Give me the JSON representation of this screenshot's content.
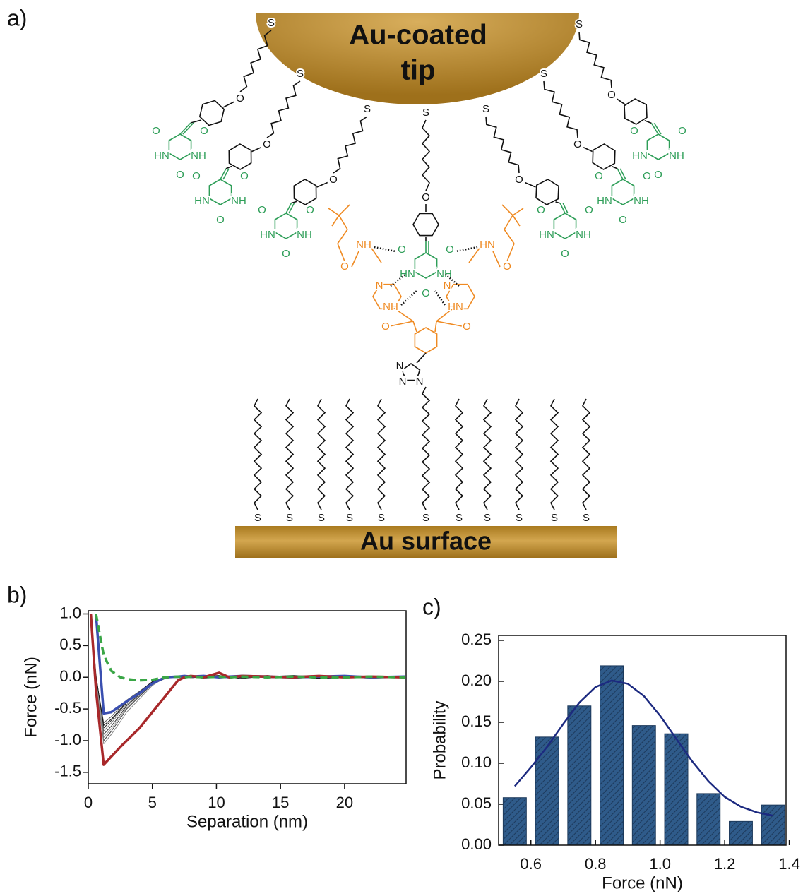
{
  "panel_labels": [
    "a)",
    "b)",
    "c)"
  ],
  "diagram": {
    "tip_label": [
      "Au-coated",
      "tip"
    ],
    "surface_label": "Au surface",
    "tip_chains": [
      {
        "s": "S",
        "o": "O",
        "barbiturate": [
          "O",
          "O",
          "HN",
          "NH",
          "O"
        ]
      },
      {
        "s": "S",
        "o": "O",
        "barbiturate": [
          "O",
          "O",
          "HN",
          "NH",
          "O"
        ]
      },
      {
        "s": "S",
        "o": "O",
        "barbiturate": [
          "O",
          "O",
          "HN",
          "NH",
          "O"
        ]
      },
      {
        "s": "S",
        "o": "O",
        "barbiturate": [
          "O",
          "O",
          "HN",
          "NH",
          "O"
        ]
      },
      {
        "s": "S",
        "o": "O",
        "barbiturate": [
          "O",
          "O",
          "HN",
          "NH",
          "O"
        ]
      },
      {
        "s": "S",
        "o": "O",
        "barbiturate": [
          "O",
          "O",
          "HN",
          "NH",
          "O"
        ]
      }
    ],
    "central_chain": {
      "s": "S",
      "o": "O",
      "barbiturate": [
        "O",
        "O",
        "HN",
        "NH",
        "O"
      ]
    },
    "receptor_labels": [
      "O",
      "NH",
      "N",
      "NH",
      "O",
      "HN",
      "O",
      "N",
      "HN",
      "O",
      "N",
      "N",
      "N"
    ],
    "surface_chains": [
      "S",
      "S",
      "S",
      "S",
      "S",
      "S",
      "S",
      "S",
      "S",
      "S",
      "S"
    ]
  },
  "chart_data": [
    {
      "type": "line",
      "xlabel": "Separation (nm)",
      "ylabel": "Force (nN)",
      "xlim": [
        0,
        24.8
      ],
      "ylim": [
        -1.68,
        1.05
      ],
      "xticks": [
        0,
        5,
        10,
        15,
        20
      ],
      "yticks": [
        {
          "value": 1,
          "label": "1.0"
        },
        0.5,
        {
          "value": 0,
          "label": "0.0"
        },
        -0.5,
        {
          "value": -1,
          "label": "-1.0"
        },
        -1.5
      ],
      "x": [
        0.2,
        0.6,
        1.2,
        1.8,
        2.5,
        3,
        4,
        5,
        6,
        7,
        7.5,
        8,
        9,
        10.2,
        11,
        12,
        14,
        16,
        18,
        20,
        22,
        24.7
      ],
      "series": [
        {
          "color": "#555555",
          "values": [
            1.0,
            0.0,
            -0.72,
            -0.62,
            -0.47,
            -0.36,
            -0.22,
            -0.07,
            0.0,
            0.02,
            -0.02,
            0.01,
            0.03,
            -0.01,
            0.02,
            0.0,
            0.03,
            -0.02,
            0.01,
            0.02,
            -0.01,
            0.0
          ]
        },
        {
          "color": "#222222",
          "values": [
            1.0,
            -0.05,
            -0.8,
            -0.68,
            -0.52,
            -0.4,
            -0.24,
            -0.08,
            0.01,
            0.0,
            0.02,
            -0.01,
            0.01,
            0.03,
            0.0,
            -0.02,
            0.02,
            0.01,
            -0.01,
            0.02,
            0.01,
            0.02
          ]
        },
        {
          "color": "#777777",
          "values": [
            1.0,
            0.05,
            -0.85,
            -0.72,
            -0.55,
            -0.43,
            -0.26,
            -0.09,
            -0.01,
            0.02,
            0.0,
            0.02,
            -0.02,
            0.01,
            0.02,
            0.01,
            0.0,
            0.02,
            0.03,
            -0.01,
            0.0,
            0.01
          ]
        },
        {
          "color": "#333333",
          "values": [
            1.0,
            -0.1,
            -0.9,
            -0.77,
            -0.59,
            -0.45,
            -0.27,
            -0.1,
            0.0,
            0.01,
            0.01,
            0.0,
            0.02,
            -0.01,
            0.01,
            0.03,
            -0.01,
            0.0,
            0.01,
            0.0,
            0.02,
            -0.01
          ]
        },
        {
          "color": "#999999",
          "values": [
            1.0,
            0.0,
            -0.95,
            -0.81,
            -0.62,
            -0.48,
            -0.29,
            -0.1,
            0.01,
            -0.01,
            0.02,
            0.01,
            0.0,
            0.02,
            -0.02,
            0.01,
            0.02,
            0.01,
            0.0,
            0.02,
            -0.02,
            0.01
          ]
        },
        {
          "color": "#444444",
          "values": [
            1.0,
            -0.15,
            -1.0,
            -0.85,
            -0.65,
            -0.5,
            -0.3,
            -0.11,
            -0.02,
            0.01,
            0.0,
            0.02,
            0.01,
            0.0,
            0.02,
            -0.01,
            0.01,
            0.03,
            0.0,
            0.01,
            0.0,
            0.02
          ]
        },
        {
          "color": "#888888",
          "values": [
            1.0,
            0.0,
            -1.05,
            -0.9,
            -0.7,
            -0.55,
            -0.34,
            -0.13,
            0.0,
            0.02,
            0.01,
            -0.01,
            0.02,
            0.01,
            0.0,
            0.02,
            -0.01,
            0.0,
            0.02,
            0.01,
            0.01,
            0.0
          ]
        },
        {
          "color": "#111111",
          "values": [
            1.0,
            0.02,
            -0.76,
            -0.66,
            -0.5,
            -0.38,
            -0.23,
            -0.07,
            0.0,
            0.01,
            0.03,
            0.0,
            -0.01,
            0.02,
            0.01,
            0.0,
            0.02,
            0.01,
            -0.02,
            0.0,
            0.02,
            0.01
          ]
        },
        {
          "color": "#3a4fb0",
          "width": 3.5,
          "values": [
            null,
            1.0,
            -0.57,
            -0.55,
            -0.45,
            -0.38,
            -0.25,
            -0.1,
            0.0,
            0.01,
            0.02,
            0.01,
            0.02,
            0.0,
            0.01,
            0.02,
            0.01,
            0.0,
            0.01,
            0.02,
            0.0,
            0.01
          ]
        },
        {
          "color": "#a8282a",
          "width": 3.5,
          "values": [
            1.0,
            -0.2,
            -1.38,
            -1.25,
            -1.1,
            -1.0,
            -0.8,
            -0.55,
            -0.3,
            -0.05,
            0.0,
            0.02,
            0.0,
            0.07,
            0.0,
            0.02,
            0.01,
            0.0,
            0.02,
            0.0,
            0.01,
            0.0
          ]
        },
        {
          "color": "#3aa646",
          "width": 3.5,
          "dashed": true,
          "values": [
            null,
            1.0,
            0.35,
            0.1,
            0.0,
            -0.03,
            -0.05,
            -0.04,
            0.0,
            0.01,
            0.0,
            0.01,
            0.0,
            0.01,
            0.0,
            0.01,
            0.0,
            0.01,
            0.0,
            0.0,
            0.01,
            0.0
          ]
        }
      ]
    },
    {
      "type": "histogram",
      "xlabel": "Force (nN)",
      "ylabel": "Probability",
      "xlim": [
        0.5,
        1.39
      ],
      "ylim": [
        0,
        0.256
      ],
      "xticks": [
        0.6,
        0.8,
        {
          "value": 1,
          "label": "1.0"
        },
        1.2,
        1.4
      ],
      "yticks": [
        {
          "value": 0,
          "label": "0.00"
        },
        0.05,
        {
          "value": 0.1,
          "label": "0.10"
        },
        0.15,
        {
          "value": 0.2,
          "label": "0.20"
        },
        0.25
      ],
      "bins": [
        0.5,
        0.6,
        0.7,
        0.8,
        0.9,
        1.0,
        1.1,
        1.2,
        1.3,
        1.4
      ],
      "values": [
        0.058,
        0.132,
        0.17,
        0.219,
        0.146,
        0.136,
        0.063,
        0.029,
        0.049
      ],
      "color": "#2f5b8a",
      "fit": {
        "color": "#1c2a80",
        "x": [
          0.55,
          0.6,
          0.65,
          0.7,
          0.75,
          0.8,
          0.85,
          0.9,
          0.95,
          1.0,
          1.05,
          1.1,
          1.15,
          1.2,
          1.25,
          1.3,
          1.35
        ],
        "values": [
          0.072,
          0.095,
          0.12,
          0.148,
          0.174,
          0.193,
          0.201,
          0.197,
          0.182,
          0.158,
          0.13,
          0.102,
          0.078,
          0.059,
          0.047,
          0.04,
          0.036
        ]
      }
    }
  ]
}
